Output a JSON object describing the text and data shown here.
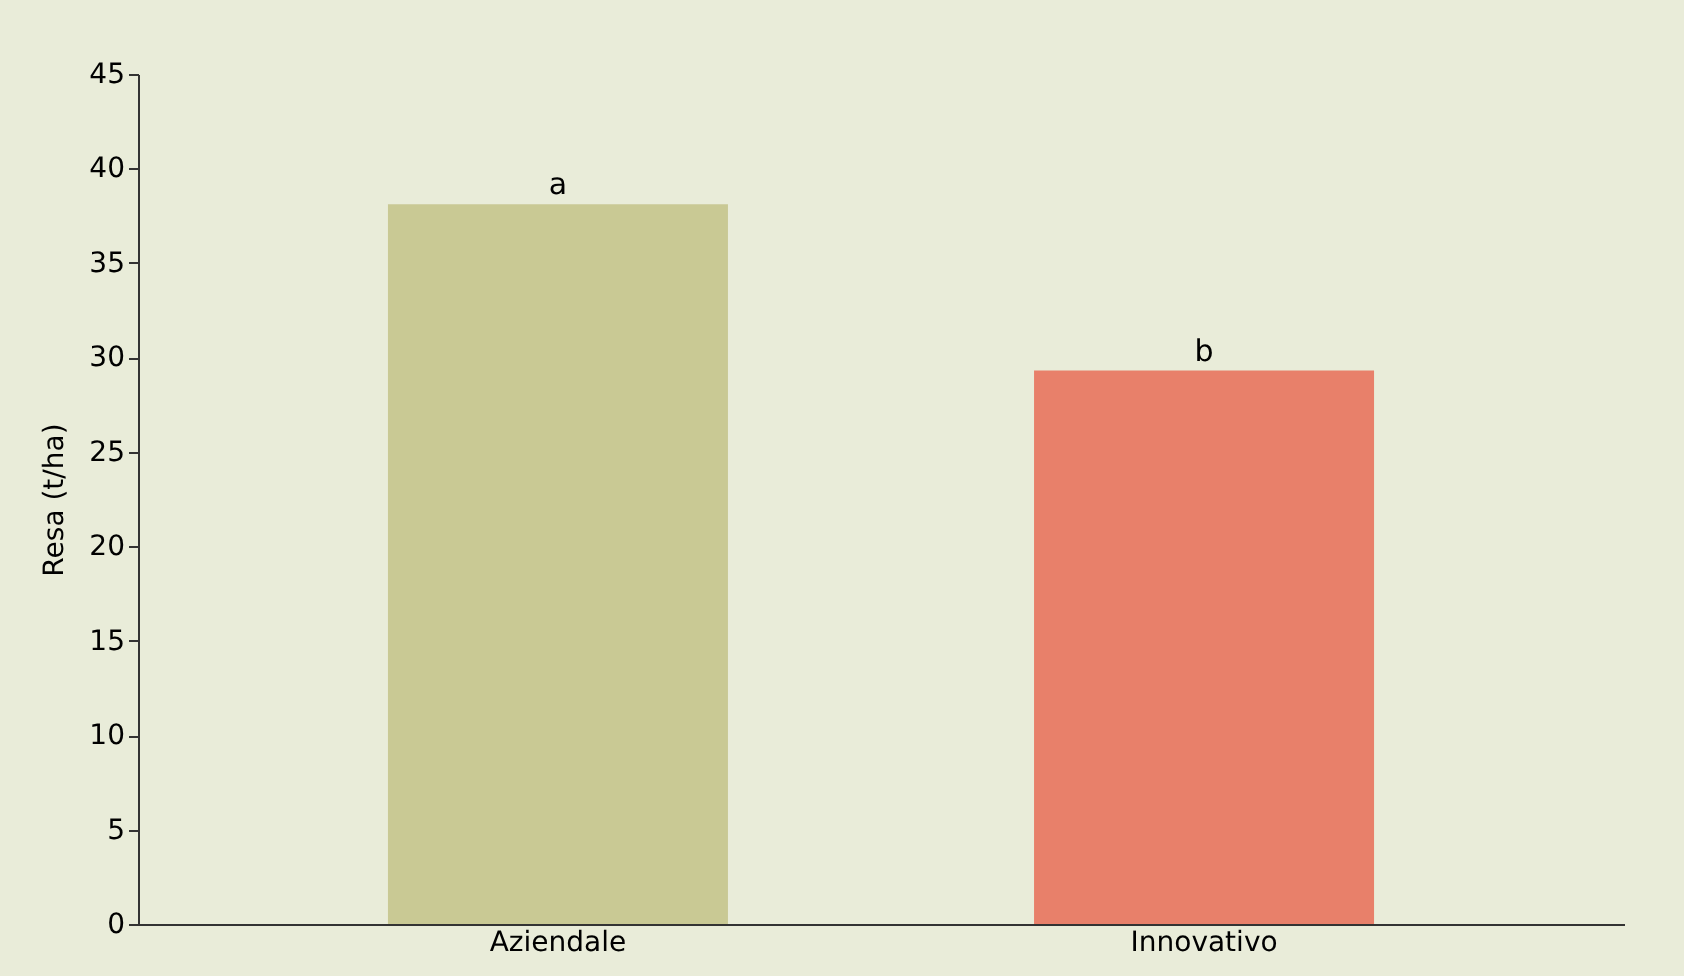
{
  "chart_data": {
    "type": "bar",
    "ylabel": "Resa (t/ha)",
    "categories": [
      "Aziendale",
      "Innovativo"
    ],
    "values": [
      38.1,
      29.3
    ],
    "colors": [
      "#c9c994",
      "#e8806a"
    ],
    "ylim": [
      0,
      45
    ],
    "yticks": [
      0,
      5,
      10,
      15,
      20,
      25,
      30,
      35,
      40,
      45
    ],
    "grid": false,
    "annotations": [
      {
        "text": "a",
        "x": "Aziendale",
        "y": 38.1
      },
      {
        "text": "b",
        "x": "Innovativo",
        "y": 29.3
      }
    ]
  }
}
